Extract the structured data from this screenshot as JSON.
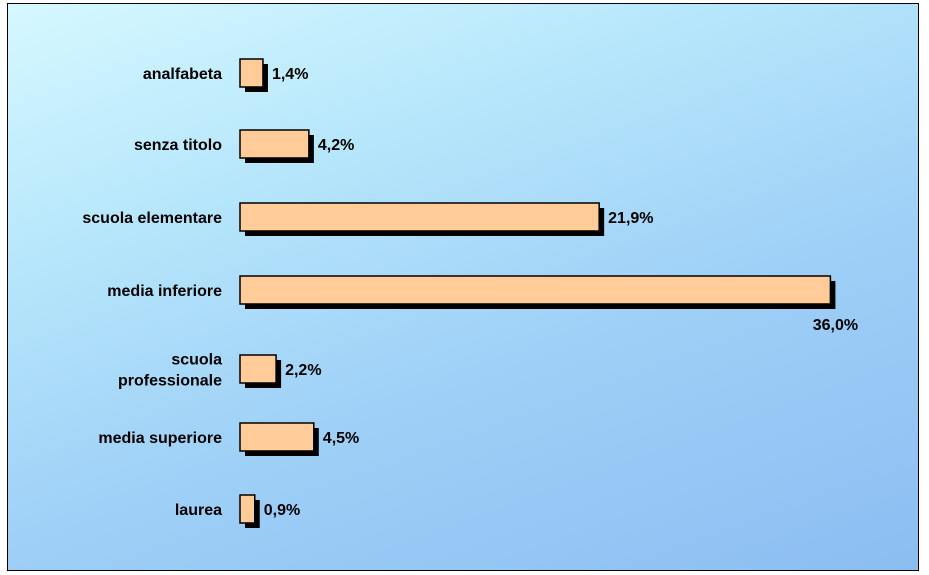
{
  "chart_data": {
    "type": "bar",
    "orientation": "horizontal",
    "categories": [
      "analfabeta",
      "senza titolo",
      "scuola elementare",
      "media inferiore",
      "scuola professionale",
      "media superiore",
      "laurea"
    ],
    "category_lines": [
      [
        "analfabeta"
      ],
      [
        "senza titolo"
      ],
      [
        "scuola elementare"
      ],
      [
        "media inferiore"
      ],
      [
        "scuola",
        "professionale"
      ],
      [
        "media superiore"
      ],
      [
        "laurea"
      ]
    ],
    "values": [
      1.4,
      4.2,
      21.9,
      36.0,
      2.2,
      4.5,
      0.9
    ],
    "value_labels": [
      "1,4%",
      "4,2%",
      "21,9%",
      "36,0%",
      "2,2%",
      "4,5%",
      "0,9%"
    ],
    "title": "",
    "xlabel": "",
    "ylabel": "",
    "grid": false,
    "legend": "none",
    "colors": {
      "bar_fill": "#ffcc99",
      "bar_border": "#000000",
      "bar_shadow": "#000000",
      "background_top": "#d6f8ff",
      "background_bottom": "#8cbdf2"
    }
  }
}
